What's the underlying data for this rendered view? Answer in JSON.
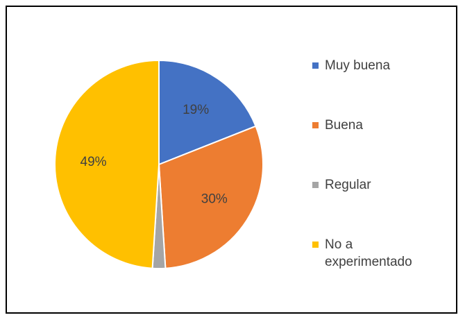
{
  "chart_data": {
    "type": "pie",
    "categories": [
      "Muy buena",
      "Buena",
      "Regular",
      "No a experimentado"
    ],
    "values": [
      19,
      30,
      2,
      49
    ],
    "value_labels": [
      "19%",
      "30%",
      null,
      "49%"
    ],
    "colors": [
      "#4472c4",
      "#ed7d31",
      "#a5a5a5",
      "#ffc000"
    ],
    "legend": "right"
  }
}
